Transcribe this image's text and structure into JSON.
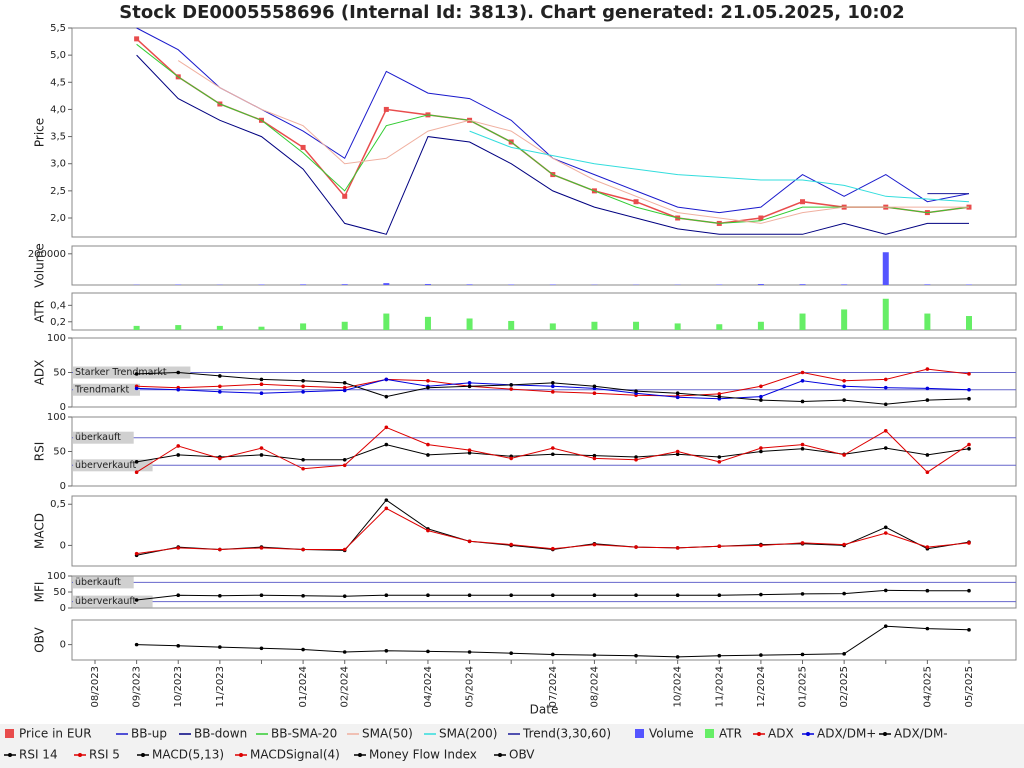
{
  "chart_data": [
    {
      "type": "line",
      "title": "Stock DE0005558696 (Internal Id: 3813). Chart generated: 21.05.2025, 10:02",
      "categories": [
        "08/2023",
        "09/2023",
        "10/2023",
        "11/2023",
        null,
        "01/2024",
        "02/2024",
        null,
        "04/2024",
        "05/2024",
        null,
        "07/2024",
        "08/2024",
        null,
        "10/2024",
        "11/2024",
        "12/2024",
        "01/2025",
        "02/2025",
        null,
        "04/2025",
        "05/2025"
      ],
      "y_label": "Price",
      "ylim": [
        1.65,
        5.5
      ],
      "yticks": [
        {
          "value": 2,
          "label": "2,0"
        },
        {
          "value": 2.5,
          "label": "2,5"
        },
        {
          "value": 3,
          "label": "3,0"
        },
        {
          "value": 3.5,
          "label": "3,5"
        },
        {
          "value": 4,
          "label": "4,0"
        },
        {
          "value": 4.5,
          "label": "4,5"
        },
        {
          "value": 5,
          "label": "5,0"
        },
        {
          "value": 5.5,
          "label": "5,5"
        }
      ],
      "series": [
        {
          "name": "Price in EUR",
          "color": "#e84c4c",
          "style": "square",
          "values": [
            null,
            5.3,
            4.6,
            4.1,
            3.8,
            3.3,
            2.4,
            4.0,
            3.9,
            3.8,
            3.4,
            2.8,
            2.5,
            2.3,
            2.0,
            1.9,
            2.0,
            2.3,
            2.2,
            2.2,
            2.1,
            2.2
          ]
        },
        {
          "name": "BB-up",
          "color": "#1a1acc",
          "style": "line",
          "values": [
            null,
            5.5,
            5.1,
            4.4,
            4.0,
            3.6,
            3.1,
            4.7,
            4.3,
            4.2,
            3.8,
            3.1,
            2.8,
            2.5,
            2.2,
            2.1,
            2.2,
            2.8,
            2.4,
            2.8,
            2.3,
            2.45
          ]
        },
        {
          "name": "BB-down",
          "color": "#000080",
          "style": "line",
          "values": [
            null,
            5.0,
            4.2,
            3.8,
            3.5,
            2.9,
            1.9,
            1.7,
            3.5,
            3.4,
            3.0,
            2.5,
            2.2,
            2.0,
            1.8,
            1.7,
            1.7,
            1.7,
            1.9,
            1.7,
            1.9,
            1.9
          ]
        },
        {
          "name": "BB-SMA-20",
          "color": "#33cc33",
          "style": "line",
          "values": [
            null,
            5.2,
            4.6,
            4.1,
            3.8,
            3.2,
            2.5,
            3.7,
            3.9,
            3.8,
            3.4,
            2.8,
            2.5,
            2.2,
            2.0,
            1.9,
            1.95,
            2.2,
            2.2,
            2.2,
            2.1,
            2.2
          ]
        },
        {
          "name": "SMA(50)",
          "color": "#f0b0a0",
          "style": "line",
          "values": [
            null,
            null,
            4.9,
            4.4,
            4.0,
            3.7,
            3.0,
            3.1,
            3.6,
            3.8,
            3.6,
            3.1,
            2.7,
            2.4,
            2.1,
            2.0,
            1.9,
            2.1,
            2.2,
            2.2,
            2.2,
            2.2
          ]
        },
        {
          "name": "SMA(200)",
          "color": "#33dddd",
          "style": "line",
          "values": [
            null,
            null,
            null,
            null,
            null,
            null,
            null,
            null,
            null,
            3.6,
            3.3,
            3.15,
            3.0,
            2.9,
            2.8,
            2.75,
            2.7,
            2.7,
            2.6,
            2.4,
            2.35,
            2.3
          ]
        },
        {
          "name": "Trend(3,30,60)",
          "color": "#1a1a99",
          "style": "line",
          "values": [
            null,
            null,
            null,
            null,
            null,
            null,
            null,
            null,
            null,
            null,
            null,
            null,
            null,
            null,
            null,
            null,
            null,
            null,
            null,
            null,
            2.45,
            2.45
          ]
        }
      ]
    },
    {
      "type": "bar",
      "y_label": "Volume",
      "ylim": [
        0,
        250000
      ],
      "yticks": [
        200000
      ],
      "series": [
        {
          "name": "Volume",
          "color": "#5555ff",
          "style": "square",
          "values": [
            null,
            2000,
            3000,
            2000,
            3000,
            4000,
            5000,
            12000,
            6000,
            4000,
            3000,
            3000,
            2000,
            2000,
            2000,
            3000,
            6000,
            5000,
            4000,
            210000,
            4000,
            3000
          ]
        }
      ]
    },
    {
      "type": "bar",
      "y_label": "ATR",
      "ylim": [
        0.1,
        0.55
      ],
      "yticks": [
        {
          "value": 0.2,
          "label": "0,2"
        },
        {
          "value": 0.4,
          "label": "0,4"
        }
      ],
      "series": [
        {
          "name": "ATR",
          "color": "#66ee66",
          "style": "square",
          "values": [
            null,
            0.15,
            0.16,
            0.15,
            0.14,
            0.18,
            0.2,
            0.3,
            0.26,
            0.24,
            0.21,
            0.18,
            0.2,
            0.2,
            0.18,
            0.17,
            0.2,
            0.3,
            0.35,
            0.48,
            0.3,
            0.27
          ]
        }
      ]
    },
    {
      "type": "line",
      "y_label": "ADX",
      "ylim": [
        0,
        100
      ],
      "yticks": [
        0,
        50,
        100
      ],
      "hlines": [
        {
          "value": 50,
          "label": "Starker Trendmarkt"
        },
        {
          "value": 25,
          "label": "Trendmarkt"
        }
      ],
      "series": [
        {
          "name": "ADX",
          "color": "#dd0000",
          "style": "marked",
          "values": [
            null,
            30,
            28,
            30,
            33,
            30,
            28,
            40,
            38,
            30,
            26,
            22,
            20,
            17,
            16,
            19,
            30,
            50,
            38,
            40,
            55,
            48
          ]
        },
        {
          "name": "ADX/DM+",
          "color": "#0000dd",
          "style": "marked",
          "values": [
            null,
            27,
            25,
            22,
            20,
            22,
            24,
            40,
            30,
            35,
            32,
            30,
            27,
            20,
            14,
            12,
            15,
            38,
            30,
            28,
            27,
            25
          ]
        },
        {
          "name": "ADX/DM-",
          "color": "#000000",
          "style": "marked",
          "values": [
            null,
            48,
            50,
            45,
            40,
            38,
            35,
            15,
            28,
            30,
            32,
            35,
            30,
            23,
            20,
            15,
            10,
            8,
            10,
            4,
            10,
            12
          ]
        }
      ]
    },
    {
      "type": "line",
      "y_label": "RSI",
      "ylim": [
        0,
        100
      ],
      "yticks": [
        0,
        50,
        100
      ],
      "hlines": [
        {
          "value": 70,
          "label": "überkauft"
        },
        {
          "value": 30,
          "label": "überverkauft"
        }
      ],
      "series": [
        {
          "name": "RSI 14",
          "color": "#000000",
          "style": "marked",
          "values": [
            null,
            35,
            45,
            42,
            45,
            38,
            38,
            60,
            45,
            48,
            43,
            46,
            44,
            42,
            46,
            42,
            50,
            54,
            46,
            55,
            45,
            54
          ]
        },
        {
          "name": "RSI 5",
          "color": "#dd0000",
          "style": "marked",
          "values": [
            null,
            20,
            58,
            40,
            55,
            25,
            30,
            85,
            60,
            52,
            40,
            55,
            40,
            38,
            50,
            35,
            55,
            60,
            45,
            80,
            20,
            60
          ]
        }
      ]
    },
    {
      "type": "line",
      "y_label": "MACD",
      "ylim": [
        -0.25,
        0.6
      ],
      "yticks": [
        0,
        {
          "value": 0.5,
          "label": "0,5"
        }
      ],
      "series": [
        {
          "name": "MACD(5,13)",
          "color": "#000000",
          "style": "marked",
          "values": [
            null,
            -0.12,
            -0.02,
            -0.05,
            -0.02,
            -0.05,
            -0.06,
            0.55,
            0.2,
            0.05,
            0.0,
            -0.05,
            0.02,
            -0.02,
            -0.03,
            -0.01,
            0.01,
            0.02,
            0.0,
            0.22,
            -0.04,
            0.04
          ]
        },
        {
          "name": "MACDSignal(4)",
          "color": "#dd0000",
          "style": "marked",
          "values": [
            null,
            -0.1,
            -0.03,
            -0.05,
            -0.03,
            -0.05,
            -0.05,
            0.45,
            0.18,
            0.05,
            0.01,
            -0.04,
            0.01,
            -0.02,
            -0.03,
            -0.01,
            0.0,
            0.03,
            0.01,
            0.15,
            -0.02,
            0.03
          ]
        }
      ]
    },
    {
      "type": "line",
      "y_label": "MFI",
      "ylim": [
        0,
        100
      ],
      "yticks": [
        0,
        50,
        100
      ],
      "hlines": [
        {
          "value": 80,
          "label": "überkauft"
        },
        {
          "value": 20,
          "label": "überverkauft"
        }
      ],
      "series": [
        {
          "name": "Money Flow Index",
          "color": "#000000",
          "style": "marked",
          "values": [
            null,
            25,
            40,
            38,
            40,
            38,
            37,
            40,
            40,
            40,
            40,
            40,
            40,
            40,
            40,
            40,
            42,
            44,
            45,
            55,
            54,
            54
          ]
        }
      ]
    },
    {
      "type": "line",
      "y_label": "OBV",
      "x_label": "Date",
      "ylim": [
        -250000,
        400000
      ],
      "yticks": [
        0
      ],
      "series": [
        {
          "name": "OBV",
          "color": "#000000",
          "style": "marked",
          "values": [
            null,
            0,
            -20000,
            -40000,
            -60000,
            -80000,
            -120000,
            -100000,
            -110000,
            -120000,
            -140000,
            -160000,
            -170000,
            -180000,
            -200000,
            -180000,
            -170000,
            -160000,
            -150000,
            300000,
            260000,
            240000
          ]
        }
      ]
    }
  ]
}
